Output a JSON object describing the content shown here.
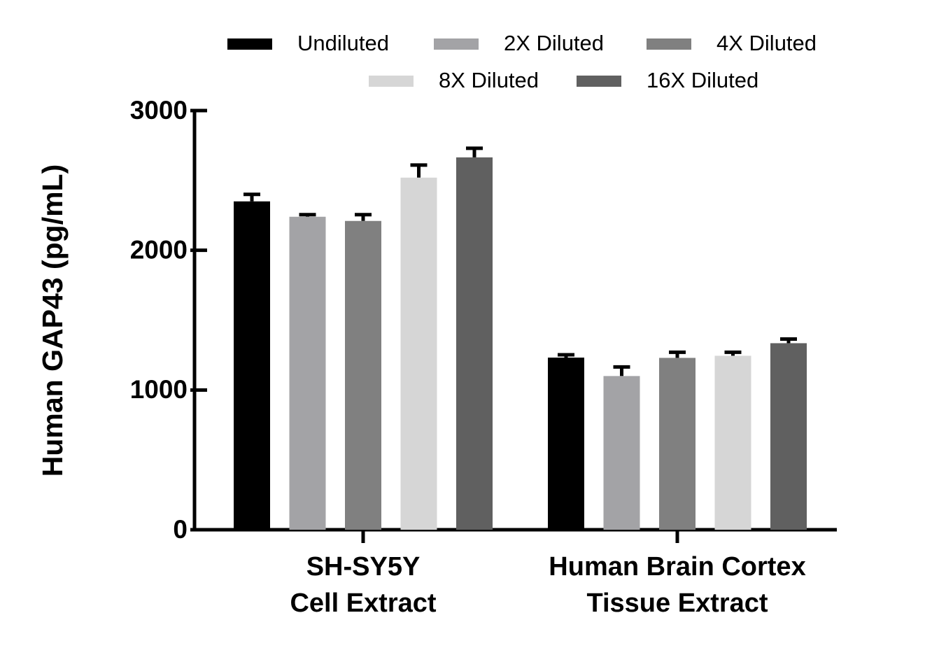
{
  "chart_data": {
    "type": "bar",
    "y_label": "Human GAP43 (pg/mL)",
    "categories": [
      [
        "SH-SY5Y",
        "Cell Extract"
      ],
      [
        "Human Brain Cortex",
        "Tissue Extract"
      ]
    ],
    "series": [
      {
        "name": "Undiluted",
        "color": "#000000",
        "values": [
          2350,
          1232
        ],
        "errors": [
          50,
          20
        ]
      },
      {
        "name": "2X Diluted",
        "color": "#a3a3a6",
        "values": [
          2240,
          1100
        ],
        "errors": [
          15,
          65
        ]
      },
      {
        "name": "4X Diluted",
        "color": "#808080",
        "values": [
          2210,
          1230
        ],
        "errors": [
          45,
          40
        ]
      },
      {
        "name": "8X Diluted",
        "color": "#d6d6d6",
        "values": [
          2520,
          1245
        ],
        "errors": [
          90,
          25
        ]
      },
      {
        "name": "16X Diluted",
        "color": "#606060",
        "values": [
          2665,
          1335
        ],
        "errors": [
          65,
          30
        ]
      }
    ],
    "ylim": [
      0,
      3000
    ],
    "yticks": [
      0,
      1000,
      2000,
      3000
    ]
  }
}
